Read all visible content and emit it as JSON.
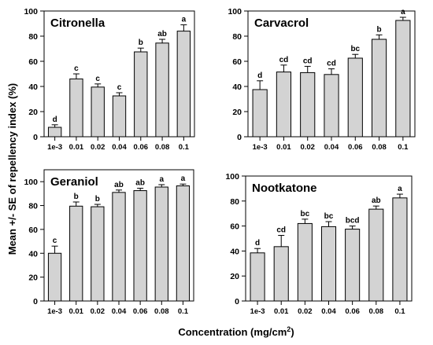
{
  "figure": {
    "ylabel": "Mean +/- SE of repellency index (%)",
    "xlabel": "Concentration (mg/cm",
    "xlabel_sup": "2",
    "xlabel_close": ")"
  },
  "chart_data": [
    {
      "type": "bar",
      "title": "Citronella",
      "categories": [
        "1e-3",
        "0.01",
        "0.02",
        "0.04",
        "0.06",
        "0.08",
        "0.1"
      ],
      "values": [
        7.5,
        46,
        39.5,
        32.5,
        67.5,
        74.5,
        84
      ],
      "errors": [
        2,
        4,
        2.5,
        2.5,
        3,
        3,
        5
      ],
      "letters": [
        "d",
        "c",
        "c",
        "c",
        "b",
        "ab",
        "a"
      ],
      "ylim": [
        0,
        100
      ],
      "yticks": [
        0,
        20,
        40,
        60,
        80,
        100
      ],
      "bar_color": "#d3d3d3"
    },
    {
      "type": "bar",
      "title": "Carvacrol",
      "categories": [
        "1e-3",
        "0.01",
        "0.02",
        "0.04",
        "0.06",
        "0.08",
        "0.1"
      ],
      "values": [
        37.5,
        51.5,
        51,
        49.5,
        62.5,
        77.5,
        92.5
      ],
      "errors": [
        7,
        5.5,
        5,
        4.5,
        3,
        3.5,
        2.5
      ],
      "letters": [
        "d",
        "cd",
        "cd",
        "cd",
        "bc",
        "b",
        "a"
      ],
      "ylim": [
        0,
        100
      ],
      "yticks": [
        0,
        20,
        40,
        60,
        80,
        100
      ],
      "bar_color": "#d3d3d3"
    },
    {
      "type": "bar",
      "title": "Geraniol",
      "categories": [
        "1e-3",
        "0.01",
        "0.02",
        "0.04",
        "0.06",
        "0.08",
        "0.1"
      ],
      "values": [
        40,
        79.5,
        79,
        91,
        92.5,
        95.5,
        96.5
      ],
      "errors": [
        6,
        3.5,
        2,
        2,
        2,
        2,
        1.5
      ],
      "letters": [
        "c",
        "b",
        "b",
        "ab",
        "ab",
        "a",
        "a"
      ],
      "ylim": [
        0,
        110
      ],
      "yticks": [
        0,
        20,
        40,
        60,
        80,
        100
      ],
      "bar_color": "#d3d3d3"
    },
    {
      "type": "bar",
      "title": "Nootkatone",
      "categories": [
        "1e-3",
        "0.01",
        "0.02",
        "0.04",
        "0.06",
        "0.08",
        "0.1"
      ],
      "values": [
        38.5,
        43.5,
        62,
        59.5,
        57.5,
        73.5,
        82.5
      ],
      "errors": [
        3.5,
        9,
        3.5,
        4,
        2.5,
        2.5,
        3
      ],
      "letters": [
        "d",
        "cd",
        "bc",
        "bc",
        "bcd",
        "ab",
        "a"
      ],
      "ylim": [
        0,
        100
      ],
      "yticks": [
        0,
        20,
        40,
        60,
        80,
        100
      ],
      "bar_color": "#d3d3d3"
    }
  ]
}
